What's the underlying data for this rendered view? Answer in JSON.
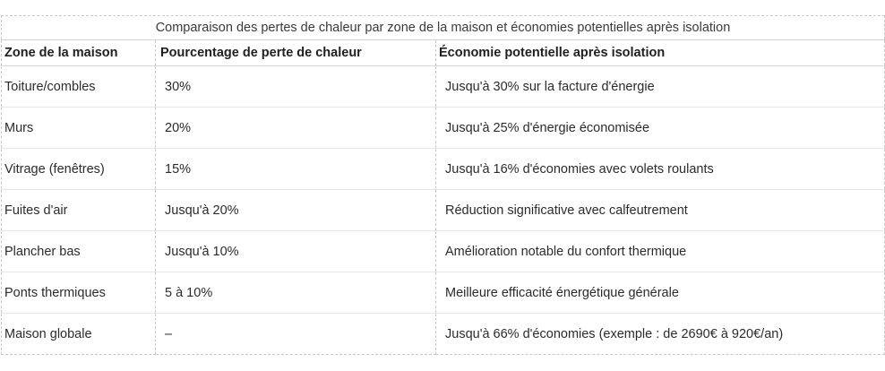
{
  "table": {
    "caption": "Comparaison des pertes de chaleur par zone de la maison et économies potentielles après isolation",
    "headers": [
      "Zone de la maison",
      "Pourcentage de perte de chaleur",
      "Économie potentielle après isolation"
    ],
    "rows": [
      [
        "Toiture/combles",
        "30%",
        "Jusqu'à 30% sur la facture d'énergie"
      ],
      [
        "Murs",
        "20%",
        "Jusqu'à 25% d'énergie économisée"
      ],
      [
        "Vitrage (fenêtres)",
        "15%",
        "Jusqu'à 16% d'économies avec volets roulants"
      ],
      [
        "Fuites d'air",
        "Jusqu'à 20%",
        "Réduction significative avec calfeutrement"
      ],
      [
        "Plancher bas",
        "Jusqu'à 10%",
        "Amélioration notable du confort thermique"
      ],
      [
        "Ponts thermiques",
        "5 à 10%",
        "Meilleure efficacité énergétique générale"
      ],
      [
        "Maison globale",
        "–",
        "Jusqu'à 66% d'économies (exemple : de 2690€ à 920€/an)"
      ]
    ]
  }
}
